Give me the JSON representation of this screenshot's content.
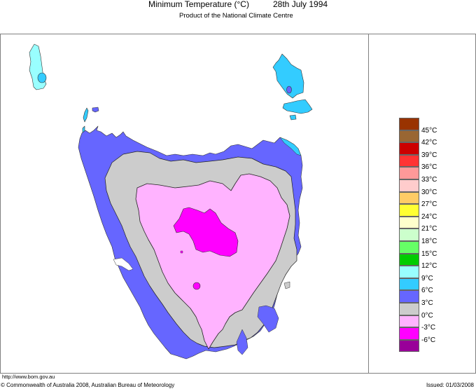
{
  "header": {
    "title": "Minimum Temperature (°C)",
    "date": "28th July 1994",
    "subtitle": "Product of the National Climate Centre"
  },
  "footer": {
    "url": "http://www.bom.gov.au",
    "copyright": "© Commonwealth of Australia 2008, Australian Bureau of Meteorology",
    "issued": "Issued: 01/03/2008"
  },
  "map": {
    "region": "Tasmania",
    "variable": "Minimum Temperature",
    "units": "°C"
  },
  "legend": {
    "bins": [
      {
        "label": "45°C",
        "color": "#993300"
      },
      {
        "label": "42°C",
        "color": "#996633"
      },
      {
        "label": "39°C",
        "color": "#cc0000"
      },
      {
        "label": "36°C",
        "color": "#ff3333"
      },
      {
        "label": "33°C",
        "color": "#ff9999"
      },
      {
        "label": "30°C",
        "color": "#ffcccc"
      },
      {
        "label": "27°C",
        "color": "#ffcc66"
      },
      {
        "label": "24°C",
        "color": "#ffff33"
      },
      {
        "label": "21°C",
        "color": "#ffffcc"
      },
      {
        "label": "18°C",
        "color": "#ccffcc"
      },
      {
        "label": "15°C",
        "color": "#66ff66"
      },
      {
        "label": "12°C",
        "color": "#00cc00"
      },
      {
        "label": "9°C",
        "color": "#99ffff"
      },
      {
        "label": "6°C",
        "color": "#33ccff"
      },
      {
        "label": "3°C",
        "color": "#6666ff"
      },
      {
        "label": "0°C",
        "color": "#cccccc"
      },
      {
        "label": "-3°C",
        "color": "#ffb3ff"
      },
      {
        "label": "-6°C",
        "color": "#ff00ff"
      },
      {
        "label": "",
        "color": "#990099"
      }
    ]
  },
  "colors": {
    "ocean": "#ffffff",
    "frame": "#808080",
    "band_9": "#99ffff",
    "band_6": "#33ccff",
    "band_3": "#6666ff",
    "band_0": "#cccccc",
    "band_m3": "#ffb3ff",
    "band_m6": "#ff00ff"
  }
}
